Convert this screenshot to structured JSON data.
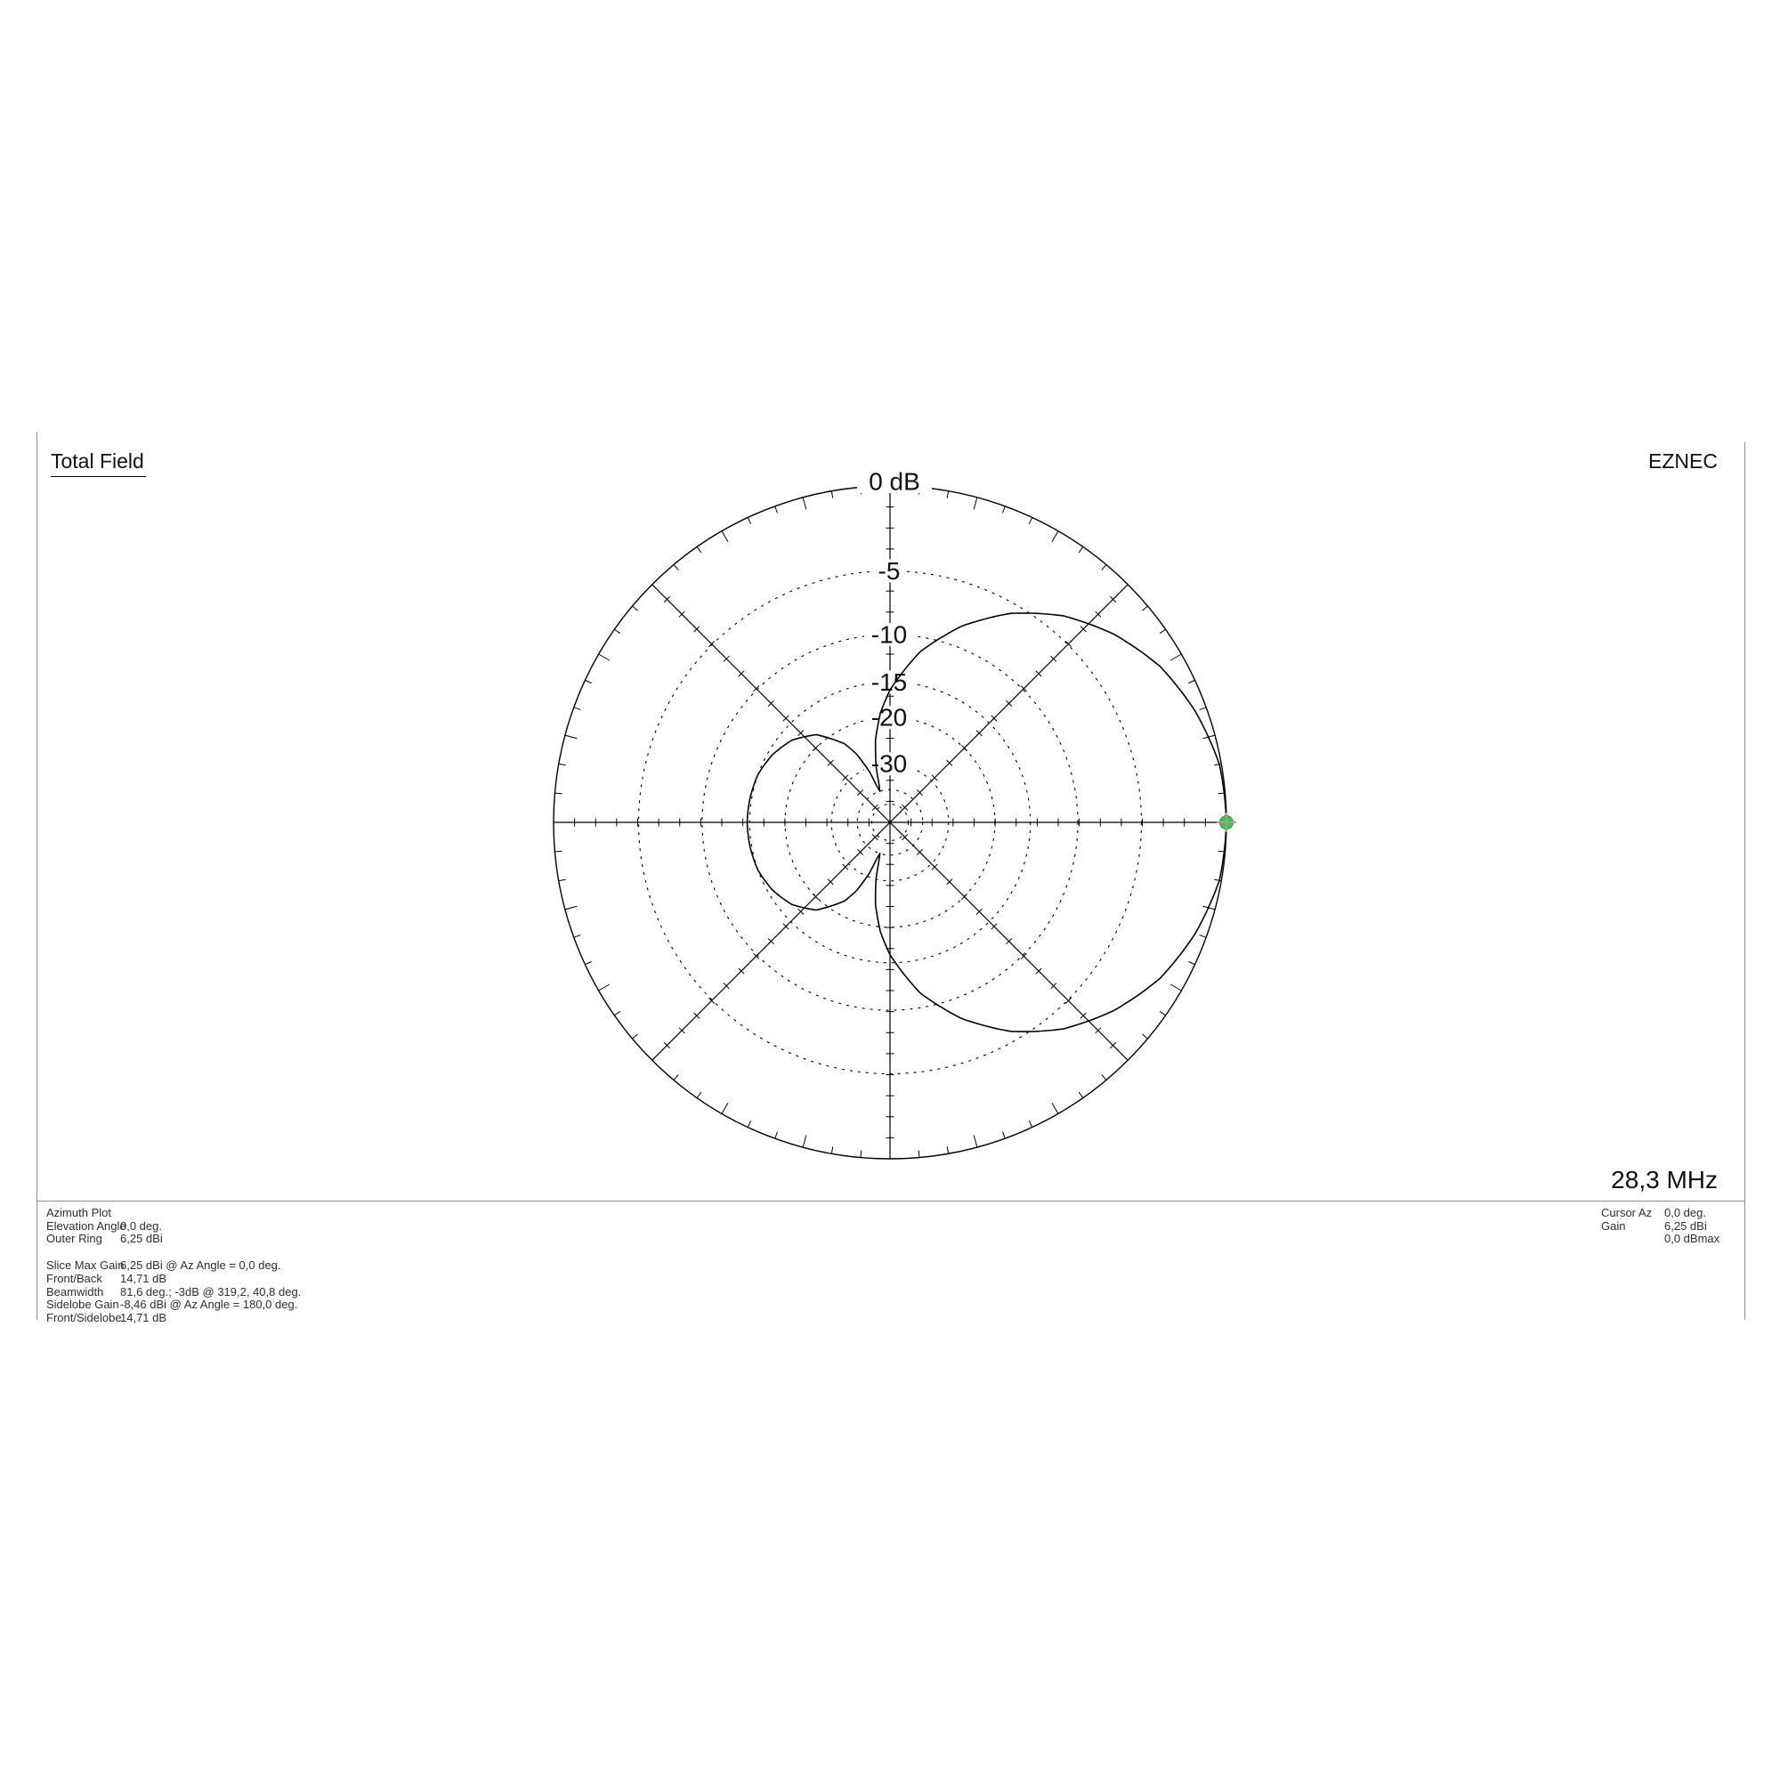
{
  "header": {
    "title": "Total Field",
    "brand": "EZNEC"
  },
  "frequency_label": "28,3 MHz",
  "info_left": {
    "section1": [
      {
        "label": "Azimuth Plot",
        "value": ""
      },
      {
        "label": "Elevation Angle",
        "value": "0,0 deg."
      },
      {
        "label": "Outer Ring",
        "value": "6,25 dBi"
      }
    ],
    "section2": [
      {
        "label": "Slice Max Gain",
        "value": "6,25 dBi @ Az Angle = 0,0 deg."
      },
      {
        "label": "Front/Back",
        "value": "14,71 dB"
      },
      {
        "label": "Beamwidth",
        "value": "81,6 deg.; -3dB @ 319,2, 40,8 deg."
      },
      {
        "label": "Sidelobe Gain",
        "value": "-8,46 dBi @ Az Angle = 180,0 deg."
      },
      {
        "label": "Front/Sidelobe",
        "value": "14,71 dB"
      }
    ]
  },
  "info_right": [
    {
      "label": "Cursor Az",
      "value": "0,0 deg."
    },
    {
      "label": "Gain",
      "value": "6,25 dBi"
    },
    {
      "label": "",
      "value": "0,0 dBmax"
    }
  ],
  "colors": {
    "line": "#000000",
    "border": "#8f8f8f",
    "cursor_green": "#2fd32f",
    "cursor_cross": "#c97fc9"
  },
  "chart_data": {
    "type": "polar-pattern",
    "title": "Total Field",
    "scale": "ARRL log: radius_fraction = 0.89^(|dB|/2)",
    "top_axis_label": "0 dB",
    "outer_ring_dbi": 6.25,
    "frequency_mhz": 28.3,
    "ring_label_db": [
      -5,
      -10,
      -15,
      -20,
      -30
    ],
    "rings_db": [
      -5,
      -10,
      -15,
      -20,
      -30,
      -40,
      -50
    ],
    "radial_axes_deg": [
      0,
      45,
      90,
      135,
      180,
      225,
      270,
      315
    ],
    "ring_tick_step_deg": 5,
    "ring_major_tick_step_deg": 15,
    "axis_tick_count": 15,
    "pattern": {
      "az_deg": [
        0,
        10,
        20,
        30,
        40,
        45,
        50,
        60,
        70,
        80,
        90,
        95,
        100,
        104,
        106,
        108,
        110,
        112,
        116,
        120,
        130,
        140,
        150,
        160,
        170,
        180,
        190,
        200,
        210,
        220,
        230,
        240,
        244,
        248,
        250,
        252,
        254,
        256,
        260,
        265,
        270,
        280,
        290,
        300,
        310,
        315,
        320,
        330,
        340,
        350,
        360
      ],
      "rel_db": [
        0,
        -0.1,
        -0.6,
        -1.3,
        -2.4,
        -3.1,
        -3.8,
        -5.7,
        -8.2,
        -11.4,
        -16,
        -19.2,
        -23.9,
        -30.3,
        -36.5,
        -40,
        -37,
        -31.2,
        -25.6,
        -22.5,
        -18.5,
        -16.6,
        -15.6,
        -15,
        -14.8,
        -14.7,
        -14.8,
        -15,
        -15.6,
        -16.6,
        -18.5,
        -22.5,
        -25.6,
        -31.2,
        -37,
        -40,
        -36.5,
        -30.3,
        -23.9,
        -19.2,
        -16,
        -11.4,
        -8.2,
        -5.7,
        -3.8,
        -3.1,
        -2.4,
        -1.3,
        -0.6,
        -0.1,
        0
      ],
      "min_db_clamp": -40
    },
    "cursor": {
      "az_deg": 0.0,
      "gain_dbi": 6.25,
      "rel_db_max": 0.0
    }
  }
}
